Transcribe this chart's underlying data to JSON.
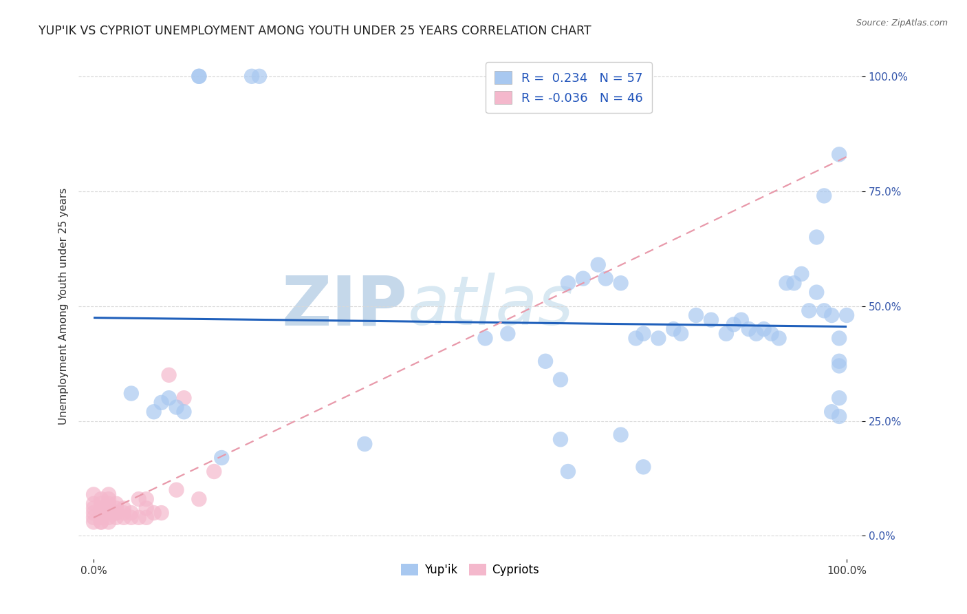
{
  "title": "YUP'IK VS CYPRIOT UNEMPLOYMENT AMONG YOUTH UNDER 25 YEARS CORRELATION CHART",
  "source": "Source: ZipAtlas.com",
  "ylabel": "Unemployment Among Youth under 25 years",
  "xlim": [
    -0.02,
    1.02
  ],
  "ylim": [
    -0.05,
    1.05
  ],
  "xtick_positions": [
    0.0,
    1.0
  ],
  "xtick_labels": [
    "0.0%",
    "100.0%"
  ],
  "ytick_positions": [
    0.0,
    0.25,
    0.5,
    0.75,
    1.0
  ],
  "ytick_labels": [
    "0.0%",
    "25.0%",
    "50.0%",
    "75.0%",
    "100.0%"
  ],
  "legend_line1": "R =  0.234   N = 57",
  "legend_line2": "R = -0.036   N = 46",
  "blue_color": "#a8c8f0",
  "pink_color": "#f4b8cc",
  "trendline_blue_color": "#2060bb",
  "trendline_pink_color": "#e899aa",
  "watermark_zip": "ZIP",
  "watermark_atlas": "atlas",
  "watermark_color": "#d0e4f4",
  "grid_color": "#d8d8d8",
  "background_color": "#ffffff",
  "blue_scatter_x": [
    0.14,
    0.14,
    0.21,
    0.22,
    0.05,
    0.08,
    0.09,
    0.1,
    0.11,
    0.12,
    0.55,
    0.63,
    0.65,
    0.67,
    0.68,
    0.7,
    0.72,
    0.73,
    0.75,
    0.77,
    0.78,
    0.8,
    0.82,
    0.84,
    0.85,
    0.86,
    0.87,
    0.88,
    0.89,
    0.9,
    0.91,
    0.92,
    0.93,
    0.94,
    0.95,
    0.96,
    0.96,
    0.97,
    0.97,
    0.98,
    0.98,
    0.99,
    0.99,
    0.99,
    0.99,
    0.99,
    0.99,
    1.0,
    0.52,
    0.6,
    0.17,
    0.36,
    0.62,
    0.62,
    0.63,
    0.7,
    0.73
  ],
  "blue_scatter_y": [
    1.0,
    1.0,
    1.0,
    1.0,
    0.31,
    0.27,
    0.29,
    0.3,
    0.28,
    0.27,
    0.44,
    0.55,
    0.56,
    0.59,
    0.56,
    0.55,
    0.43,
    0.44,
    0.43,
    0.45,
    0.44,
    0.48,
    0.47,
    0.44,
    0.46,
    0.47,
    0.45,
    0.44,
    0.45,
    0.44,
    0.43,
    0.55,
    0.55,
    0.57,
    0.49,
    0.53,
    0.65,
    0.74,
    0.49,
    0.48,
    0.27,
    0.3,
    0.26,
    0.38,
    0.37,
    0.43,
    0.83,
    0.48,
    0.43,
    0.38,
    0.17,
    0.2,
    0.21,
    0.34,
    0.14,
    0.22,
    0.15
  ],
  "pink_scatter_x": [
    0.0,
    0.0,
    0.0,
    0.0,
    0.0,
    0.0,
    0.01,
    0.01,
    0.01,
    0.01,
    0.01,
    0.01,
    0.01,
    0.01,
    0.01,
    0.01,
    0.02,
    0.02,
    0.02,
    0.02,
    0.02,
    0.02,
    0.02,
    0.02,
    0.03,
    0.03,
    0.03,
    0.03,
    0.03,
    0.04,
    0.04,
    0.04,
    0.05,
    0.05,
    0.06,
    0.06,
    0.07,
    0.07,
    0.07,
    0.08,
    0.09,
    0.1,
    0.11,
    0.12,
    0.14,
    0.16
  ],
  "pink_scatter_y": [
    0.09,
    0.07,
    0.06,
    0.05,
    0.04,
    0.03,
    0.08,
    0.07,
    0.06,
    0.06,
    0.05,
    0.05,
    0.04,
    0.04,
    0.03,
    0.03,
    0.09,
    0.08,
    0.07,
    0.06,
    0.06,
    0.05,
    0.04,
    0.03,
    0.07,
    0.06,
    0.05,
    0.05,
    0.04,
    0.06,
    0.05,
    0.04,
    0.05,
    0.04,
    0.08,
    0.04,
    0.08,
    0.06,
    0.04,
    0.05,
    0.05,
    0.35,
    0.1,
    0.3,
    0.08,
    0.14
  ]
}
